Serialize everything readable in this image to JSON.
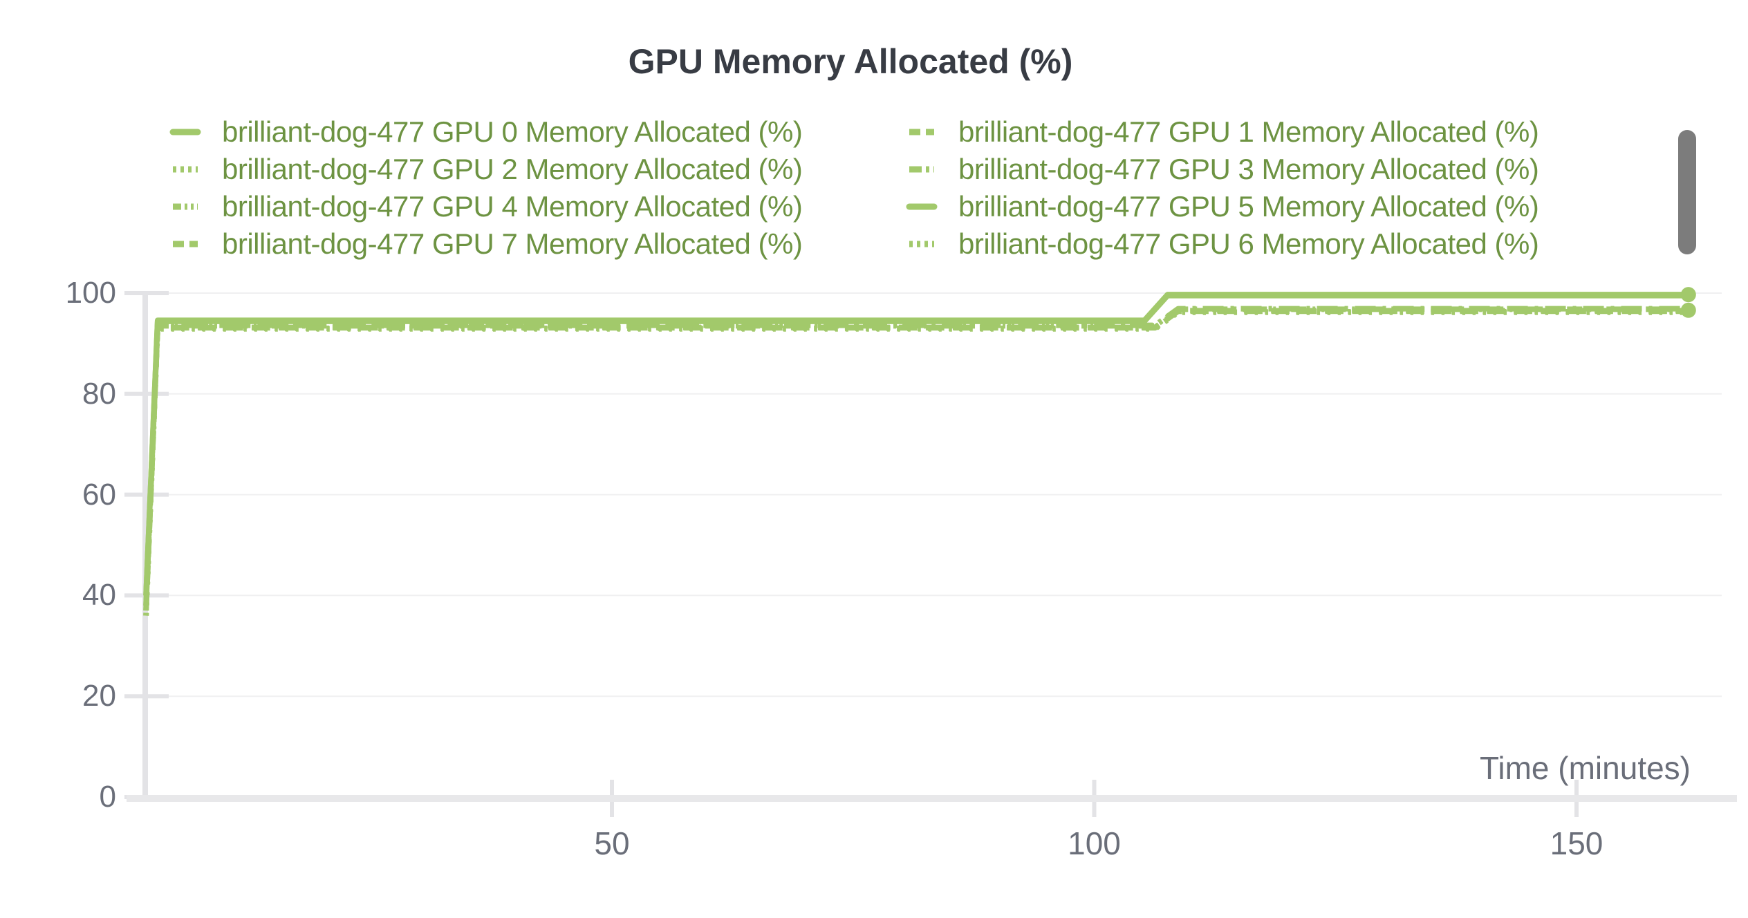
{
  "chart": {
    "line_color": "#a2c96b",
    "legend_text_color": "#6d9342",
    "title_color": "#383c44",
    "axis_text_color": "#6a6e79",
    "gridline_color": "#f0f0f1",
    "axis_line_color": "#e3e3e6",
    "bottom_axis_color": "#e8e8ea",
    "scrollbar_color": "#7c7c7c"
  },
  "chart_data": {
    "type": "line",
    "title": "GPU Memory Allocated (%)",
    "xlabel": "Time (minutes)",
    "ylabel": "",
    "xlim": [
      0,
      166
    ],
    "ylim": [
      0,
      100
    ],
    "x_ticks": [
      50,
      100,
      150
    ],
    "y_ticks": [
      0,
      20,
      40,
      60,
      80,
      100
    ],
    "grid": "horizontal",
    "legend_position": "top",
    "series": [
      {
        "name": "brilliant-dog-477 GPU 0 Memory Allocated (%)",
        "dash": "solid",
        "x": [
          1.7,
          2.9,
          105.2,
          107.6,
          161.6
        ],
        "values": [
          40,
          94.6,
          94.6,
          99.7,
          99.7
        ]
      },
      {
        "name": "brilliant-dog-477 GPU 1 Memory Allocated (%)",
        "dash": "dashed",
        "x": [
          1.7,
          2.9,
          106.3,
          108.7,
          161.6
        ],
        "values": [
          37,
          93.2,
          93.2,
          96.5,
          96.5
        ]
      },
      {
        "name": "brilliant-dog-477 GPU 2 Memory Allocated (%)",
        "dash": "dotted",
        "x": [
          1.7,
          2.9,
          106.3,
          108.7,
          161.6
        ],
        "values": [
          36,
          93.0,
          93.0,
          96.3,
          96.3
        ]
      },
      {
        "name": "brilliant-dog-477 GPU 3 Memory Allocated (%)",
        "dash": "dashdot",
        "x": [
          1.7,
          2.9,
          106.3,
          108.7,
          161.6
        ],
        "values": [
          38,
          93.6,
          93.6,
          96.9,
          96.9
        ]
      },
      {
        "name": "brilliant-dog-477 GPU 4 Memory Allocated (%)",
        "dash": "dashdotdot",
        "x": [
          1.7,
          2.9,
          106.3,
          108.7,
          161.6
        ],
        "values": [
          38,
          93.5,
          93.5,
          96.8,
          96.8
        ]
      },
      {
        "name": "brilliant-dog-477 GPU 5 Memory Allocated (%)",
        "dash": "solid",
        "x": [
          1.7,
          2.9,
          105.2,
          107.6,
          161.6
        ],
        "values": [
          40,
          94.4,
          94.4,
          99.5,
          99.5
        ]
      },
      {
        "name": "brilliant-dog-477 GPU 7 Memory Allocated (%)",
        "dash": "dashed",
        "x": [
          1.7,
          2.9,
          106.3,
          108.7,
          161.6
        ],
        "values": [
          37,
          93.1,
          93.1,
          96.4,
          96.4
        ]
      },
      {
        "name": "brilliant-dog-477 GPU 6 Memory Allocated (%)",
        "dash": "dotted",
        "x": [
          1.7,
          2.9,
          106.3,
          108.7,
          161.6
        ],
        "values": [
          36,
          92.9,
          92.9,
          96.2,
          96.2
        ]
      }
    ],
    "end_markers": [
      {
        "x": 161.6,
        "y": 99.7
      },
      {
        "x": 161.6,
        "y": 96.6
      }
    ]
  }
}
